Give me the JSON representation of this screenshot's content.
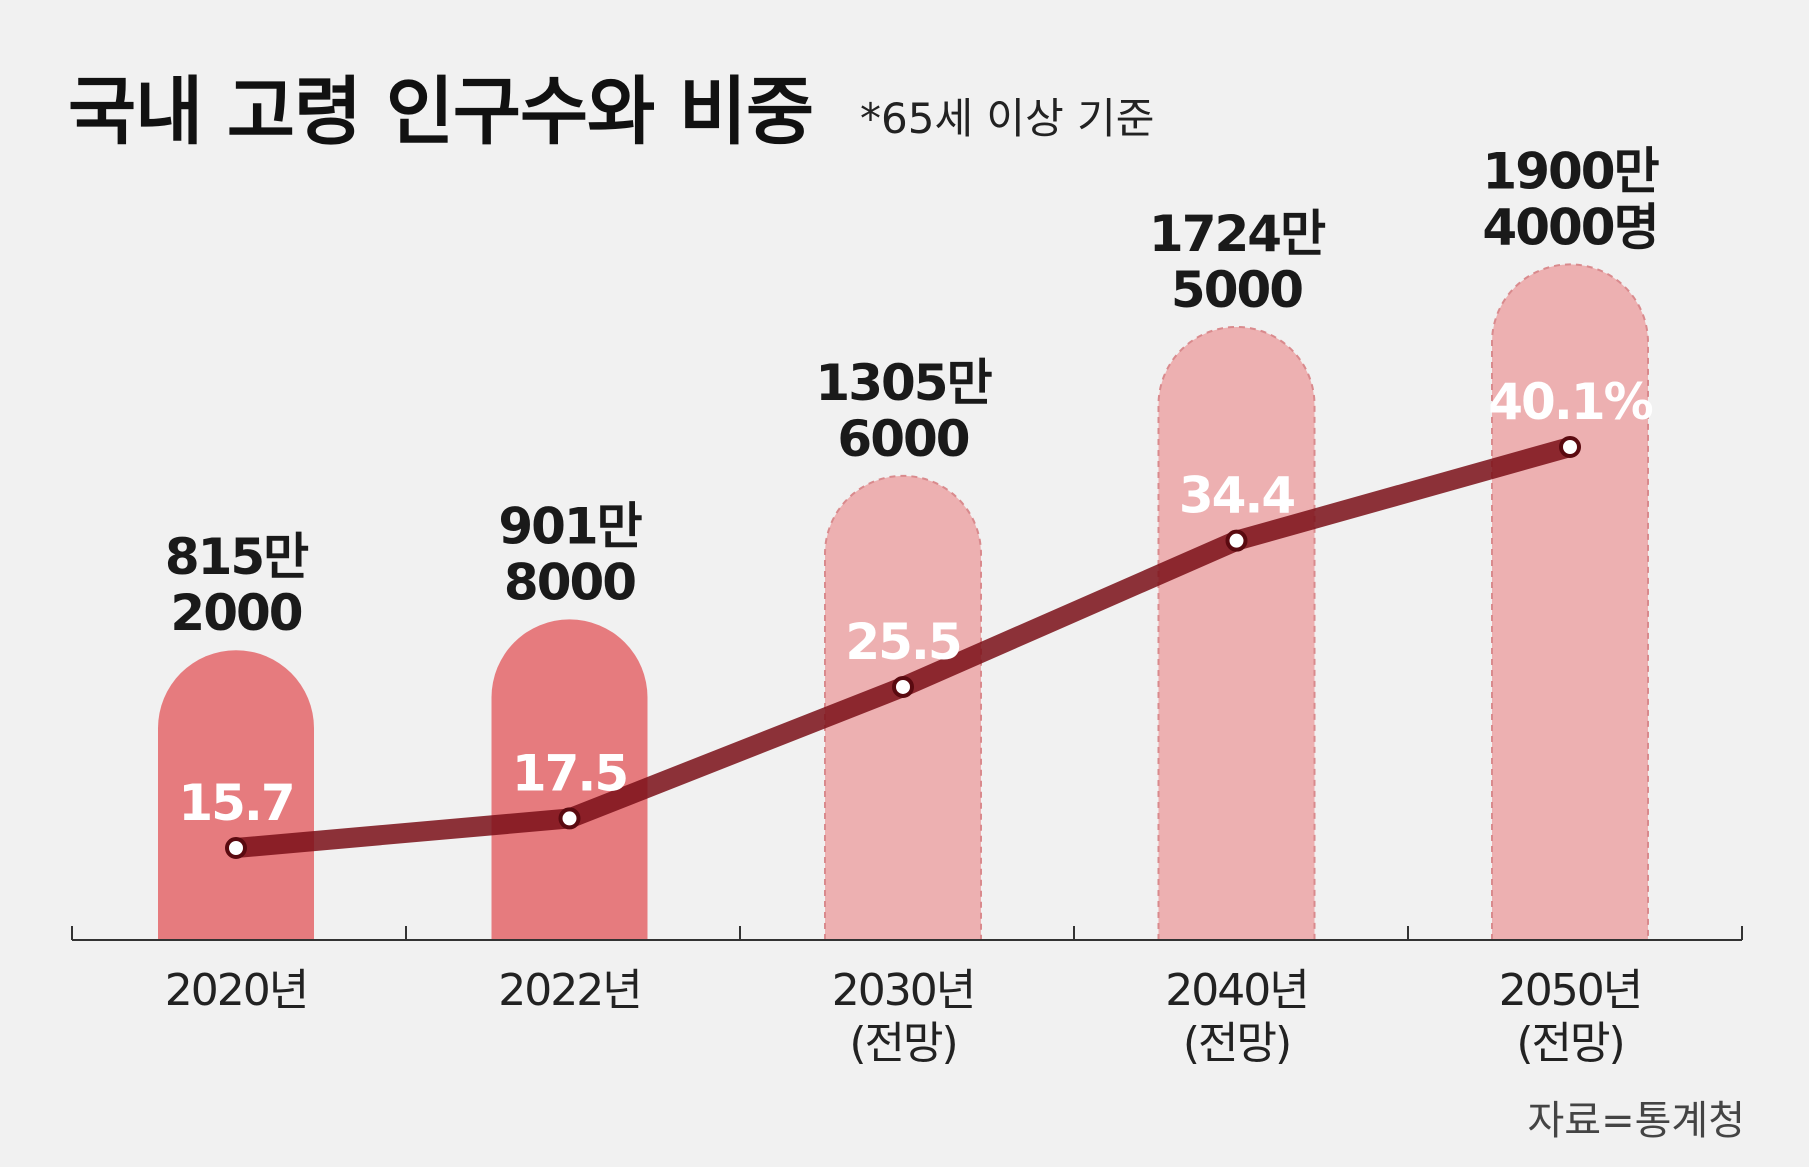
{
  "title": "국내 고령 인구수와 비중",
  "subtitle": "*65세 이상 기준",
  "source": "자료=통계청",
  "chart_data": {
    "type": "bar",
    "title": "국내 고령 인구수와 비중",
    "categories": [
      {
        "year": "2020년",
        "note": ""
      },
      {
        "year": "2022년",
        "note": ""
      },
      {
        "year": "2030년",
        "note": "(전망)"
      },
      {
        "year": "2040년",
        "note": "(전망)"
      },
      {
        "year": "2050년",
        "note": "(전망)"
      }
    ],
    "bar_series": {
      "values": [
        8152000,
        9018000,
        13056000,
        17245000,
        19004000
      ],
      "labels": [
        [
          "815만",
          "2000"
        ],
        [
          "901만",
          "8000"
        ],
        [
          "1305만",
          "6000"
        ],
        [
          "1724만",
          "5000"
        ],
        [
          "1900만",
          "4000명"
        ]
      ],
      "projected": [
        false,
        false,
        true,
        true,
        true
      ]
    },
    "line_series": {
      "values": [
        15.7,
        17.5,
        25.5,
        34.4,
        40.1
      ],
      "labels": [
        "15.7",
        "17.5",
        "25.5",
        "34.4",
        "40.1%"
      ]
    },
    "colors": {
      "bar_actual": "#e67b7e",
      "bar_projected": "#edb0b1",
      "line": "#7a0f18",
      "background": "#f1f1f1"
    }
  }
}
